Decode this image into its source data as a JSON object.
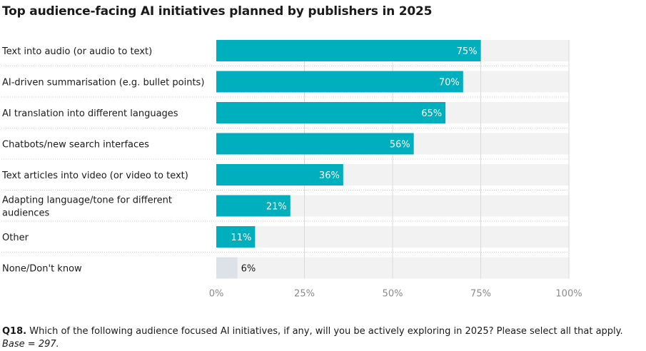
{
  "title": "Top audience-facing AI initiatives planned by publishers in 2025",
  "chart_data": {
    "type": "bar",
    "orientation": "horizontal",
    "title": "Top audience-facing AI initiatives planned by publishers in 2025",
    "categories": [
      "Text into audio (or audio to text)",
      "AI-driven summarisation (e.g. bullet points)",
      "AI translation into different languages",
      "Chatbots/new search interfaces",
      "Text articles into video (or video to text)",
      "Adapting language/tone for different audiences",
      "Other",
      "None/Don't know"
    ],
    "values": [
      75,
      70,
      65,
      56,
      36,
      21,
      11,
      6
    ],
    "value_labels": [
      "75%",
      "70%",
      "65%",
      "56%",
      "36%",
      "21%",
      "11%",
      "6%"
    ],
    "xlim": [
      0,
      100
    ],
    "xticks": [
      "0%",
      "25%",
      "50%",
      "75%",
      "100%"
    ],
    "xlabel": "",
    "ylabel": "",
    "grid": true,
    "colors": {
      "bar": "#00afbd",
      "bar_none": "#dde1e8",
      "track": "#f2f2f2",
      "grid": "#d9d9d9",
      "label_inside": "#ffffff",
      "label_outside": "#1a1a1a",
      "tick": "#8a8a8a"
    }
  },
  "footnote": {
    "question_id": "Q18.",
    "question": "Which of the following audience focused AI initiatives, if any, will you be actively exploring in 2025? Please select all that apply.",
    "base": "Base = 297."
  }
}
